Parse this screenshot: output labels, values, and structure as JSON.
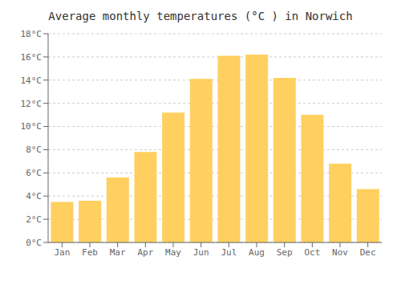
{
  "chart_data": {
    "type": "bar",
    "title": "Average monthly temperatures (°C ) in Norwich",
    "categories": [
      "Jan",
      "Feb",
      "Mar",
      "Apr",
      "May",
      "Jun",
      "Jul",
      "Aug",
      "Sep",
      "Oct",
      "Nov",
      "Dec"
    ],
    "values": [
      3.5,
      3.6,
      5.6,
      7.8,
      11.2,
      14.1,
      16.1,
      16.2,
      14.2,
      11.0,
      6.8,
      4.6
    ],
    "color": "#FFD060",
    "ylim": [
      0,
      18
    ],
    "yticks": [
      {
        "value": 0,
        "label": "0°C"
      },
      {
        "value": 2,
        "label": "2°C"
      },
      {
        "value": 4,
        "label": "4°C"
      },
      {
        "value": 6,
        "label": "6°C"
      },
      {
        "value": 8,
        "label": "8°C"
      },
      {
        "value": 10,
        "label": "10°C"
      },
      {
        "value": 12,
        "label": "12°C"
      },
      {
        "value": 14,
        "label": "14°C"
      },
      {
        "value": 16,
        "label": "16°C"
      },
      {
        "value": 18,
        "label": "18°C"
      }
    ],
    "grid": true
  }
}
